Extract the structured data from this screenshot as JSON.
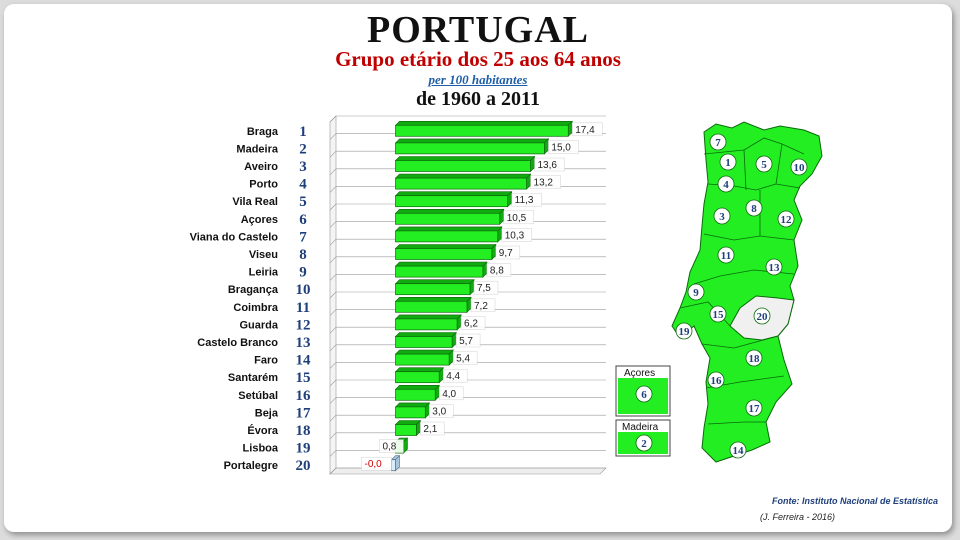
{
  "header": {
    "title": "PORTUGAL",
    "subtitle": "Grupo etário dos 25 aos 64 anos",
    "unit": "per 100 habitantes",
    "period": "de 1960 a 2011"
  },
  "chart_data": {
    "type": "bar",
    "orientation": "horizontal",
    "categories": [
      "Braga",
      "Madeira",
      "Aveiro",
      "Porto",
      "Vila Real",
      "Açores",
      "Viana do Castelo",
      "Viseu",
      "Leiria",
      "Bragança",
      "Coimbra",
      "Guarda",
      "Castelo Branco",
      "Faro",
      "Santarém",
      "Setúbal",
      "Beja",
      "Évora",
      "Lisboa",
      "Portalegre"
    ],
    "ranks": [
      1,
      2,
      3,
      4,
      5,
      6,
      7,
      8,
      9,
      10,
      11,
      12,
      13,
      14,
      15,
      16,
      17,
      18,
      19,
      20
    ],
    "values": [
      17.4,
      15.0,
      13.6,
      13.2,
      11.3,
      10.5,
      10.3,
      9.7,
      8.8,
      7.5,
      7.2,
      6.2,
      5.7,
      5.4,
      4.4,
      4.0,
      3.0,
      2.1,
      0.8,
      -0.0
    ],
    "value_labels": [
      "17,4",
      "15,0",
      "13,6",
      "13,2",
      "11,3",
      "10,5",
      "10,3",
      "9,7",
      "8,8",
      "7,5",
      "7,2",
      "6,2",
      "5,7",
      "5,4",
      "4,4",
      "4,0",
      "3,0",
      "2,1",
      "0,8",
      "-0,0"
    ],
    "xlim": [
      -6.6,
      20.6
    ],
    "grid": true,
    "colors": {
      "bar": "#22ee22",
      "bar_dark": "#11aa11",
      "bar_edge": "#0a6a0a",
      "negative_bar": "#d9ecf8",
      "negative_label": "#d00000"
    }
  },
  "map": {
    "fill": "#22ee22",
    "highlight_fill": "#f0f0f0",
    "districts": [
      {
        "rank": "7"
      },
      {
        "rank": "1"
      },
      {
        "rank": "5"
      },
      {
        "rank": "10"
      },
      {
        "rank": "4"
      },
      {
        "rank": "3"
      },
      {
        "rank": "8"
      },
      {
        "rank": "12"
      },
      {
        "rank": "11"
      },
      {
        "rank": "13"
      },
      {
        "rank": "9"
      },
      {
        "rank": "15"
      },
      {
        "rank": "20"
      },
      {
        "rank": "19"
      },
      {
        "rank": "18"
      },
      {
        "rank": "16"
      },
      {
        "rank": "17"
      },
      {
        "rank": "14"
      }
    ],
    "insets": [
      {
        "label": "Açores",
        "rank": "6"
      },
      {
        "label": "Madeira",
        "rank": "2"
      }
    ]
  },
  "footer": {
    "source": "Fonte: Instituto Nacional de Estatística",
    "author": "(J. Ferreira - 2016)"
  }
}
